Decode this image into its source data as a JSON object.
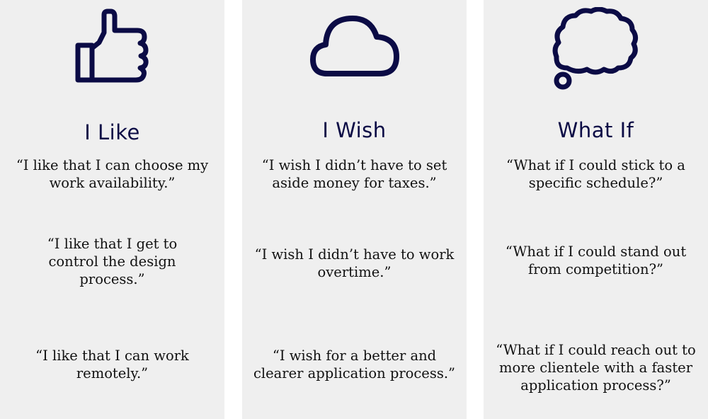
{
  "colors": {
    "panel_bg": "#efefef",
    "page_bg": "#ffffff",
    "icon_color": "#0b0b45",
    "heading_color": "#0b0b45",
    "text_color": "#111111"
  },
  "columns": [
    {
      "icon": "thumbs-up-icon",
      "heading": "I Like",
      "quotes": [
        "“I like that I can choose my\nwork availability.”",
        "“I like that I get to\ncontrol the design\nprocess.”",
        "“I like that I can work\nremotely.”"
      ]
    },
    {
      "icon": "cloud-icon",
      "heading": "I Wish",
      "quotes": [
        "“I wish I didn’t have to set\naside money for taxes.”",
        "“I wish I didn’t have to work\novertime.”",
        "“I wish for a better and\nclearer application process.”"
      ]
    },
    {
      "icon": "thought-bubble-icon",
      "heading": "What If",
      "quotes": [
        "“What if I could stick to a\nspecific schedule?”",
        "“What if I could stand out\nfrom competition?”",
        "“What if I could reach out to\nmore clientele with a faster\napplication process?”"
      ]
    }
  ]
}
